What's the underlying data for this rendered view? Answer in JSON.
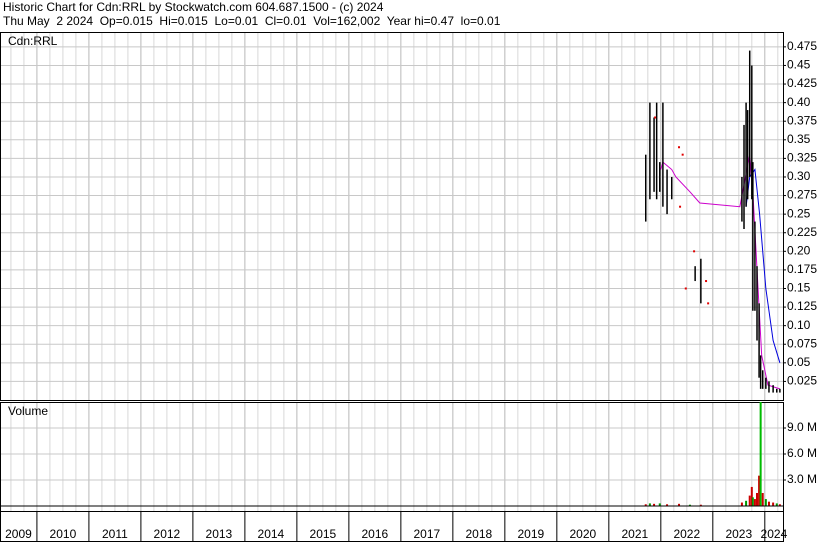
{
  "header": {
    "line1": "Historic Chart for Cdn:RRL by Stockwatch.com 604.687.1500 - (c) 2024",
    "line2": "Thu May  2 2024  Op=0.015  Hi=0.015  Lo=0.01  Cl=0.01  Vol=162,002  Year hi=0.47  lo=0.01"
  },
  "chart_data": [
    {
      "type": "range",
      "title": "Cdn:RRL",
      "xlim": [
        2009.29,
        2024.35
      ],
      "ylim": [
        0,
        0.495
      ],
      "grid": true,
      "yticks": [
        0.025,
        0.05,
        0.075,
        {
          "value": 0.1,
          "label": "0.10"
        },
        0.125,
        0.15,
        0.175,
        {
          "value": 0.2,
          "label": "0.20"
        },
        0.225,
        0.25,
        0.275,
        {
          "value": 0.3,
          "label": "0.30"
        },
        0.325,
        0.35,
        0.375,
        {
          "value": 0.4,
          "label": "0.40"
        },
        0.425,
        0.45,
        0.475
      ],
      "ranges": {
        "color": "#000000",
        "x": [
          2021.71,
          2021.79,
          2021.87,
          2021.92,
          2021.98,
          2022.04,
          2022.12,
          2022.21,
          2022.66,
          2022.77,
          2023.56,
          2023.6,
          2023.64,
          2023.67,
          2023.71,
          2023.75,
          2023.77,
          2023.81,
          2023.85,
          2023.89,
          2023.92,
          2023.96,
          2024.02,
          2024.08,
          2024.16,
          2024.23,
          2024.29
        ],
        "high": [
          0.33,
          0.4,
          0.38,
          0.4,
          0.32,
          0.4,
          0.31,
          0.3,
          0.18,
          0.19,
          0.3,
          0.37,
          0.4,
          0.39,
          0.47,
          0.45,
          0.32,
          0.24,
          0.18,
          0.13,
          0.06,
          0.04,
          0.03,
          0.025,
          0.02,
          0.015,
          0.015
        ],
        "low": [
          0.24,
          0.27,
          0.28,
          0.27,
          0.28,
          0.26,
          0.25,
          0.27,
          0.16,
          0.13,
          0.24,
          0.23,
          0.26,
          0.27,
          0.3,
          0.27,
          0.12,
          0.12,
          0.08,
          0.03,
          0.015,
          0.015,
          0.015,
          0.01,
          0.01,
          0.01,
          0.01
        ]
      },
      "points": {
        "color": "#e00000",
        "x": [
          2021.89,
          2022.35,
          2022.37,
          2022.42,
          2022.48,
          2022.64,
          2022.87,
          2022.91
        ],
        "values": [
          0.38,
          0.34,
          0.26,
          0.33,
          0.15,
          0.2,
          0.16,
          0.13
        ]
      },
      "lines": [
        {
          "color": "#cc00cc",
          "x": [
            2022.0,
            2022.04,
            2022.21,
            2022.29,
            2022.56,
            2022.75,
            2023.52,
            2023.71,
            2023.77,
            2023.87,
            2023.94,
            2024.06,
            2024.29
          ],
          "values": [
            0.31,
            0.32,
            0.31,
            0.3,
            0.28,
            0.265,
            0.26,
            0.33,
            0.28,
            0.15,
            0.06,
            0.02,
            0.015
          ]
        },
        {
          "color": "#0000dd",
          "x": [
            2023.64,
            2023.71,
            2023.81,
            2023.9,
            2024.02,
            2024.16,
            2024.29
          ],
          "values": [
            0.26,
            0.3,
            0.31,
            0.25,
            0.15,
            0.08,
            0.05
          ]
        }
      ]
    },
    {
      "type": "bar",
      "title": "Volume",
      "xlim": [
        2009.29,
        2024.35
      ],
      "ylim": [
        0,
        12000000
      ],
      "grid": true,
      "yticks": [
        {
          "value": 3000000,
          "label": "3.0 M"
        },
        {
          "value": 6000000,
          "label": "6.0 M"
        },
        {
          "value": 9000000,
          "label": "9.0 M"
        }
      ],
      "xticks": [
        2009,
        2010,
        2011,
        2012,
        2013,
        2014,
        2015,
        2016,
        2017,
        2018,
        2019,
        2020,
        2021,
        2022,
        2023,
        2024
      ],
      "x": [
        2021.71,
        2021.79,
        2021.87,
        2021.98,
        2022.12,
        2022.35,
        2022.56,
        2022.77,
        2023.56,
        2023.64,
        2023.71,
        2023.75,
        2023.77,
        2023.81,
        2023.85,
        2023.89,
        2023.92,
        2023.96,
        2024.02,
        2024.08,
        2024.16,
        2024.23,
        2024.29
      ],
      "values": [
        200000,
        300000,
        250000,
        300000,
        200000,
        250000,
        150000,
        150000,
        400000,
        600000,
        1200000,
        2200000,
        1000000,
        800000,
        1500000,
        3500000,
        12000000,
        1500000,
        800000,
        500000,
        400000,
        300000,
        200000
      ],
      "colors": [
        "#cc0000",
        "#009900",
        "#cc0000",
        "#009900",
        "#cc0000",
        "#cc0000",
        "#009900",
        "#cc0000",
        "#cc0000",
        "#009900",
        "#cc0000",
        "#cc0000",
        "#009900",
        "#cc0000",
        "#cc0000",
        "#cc0000",
        "#00bb00",
        "#cc0000",
        "#009900",
        "#cc0000",
        "#cc0000",
        "#009900",
        "#cc0000"
      ]
    }
  ]
}
